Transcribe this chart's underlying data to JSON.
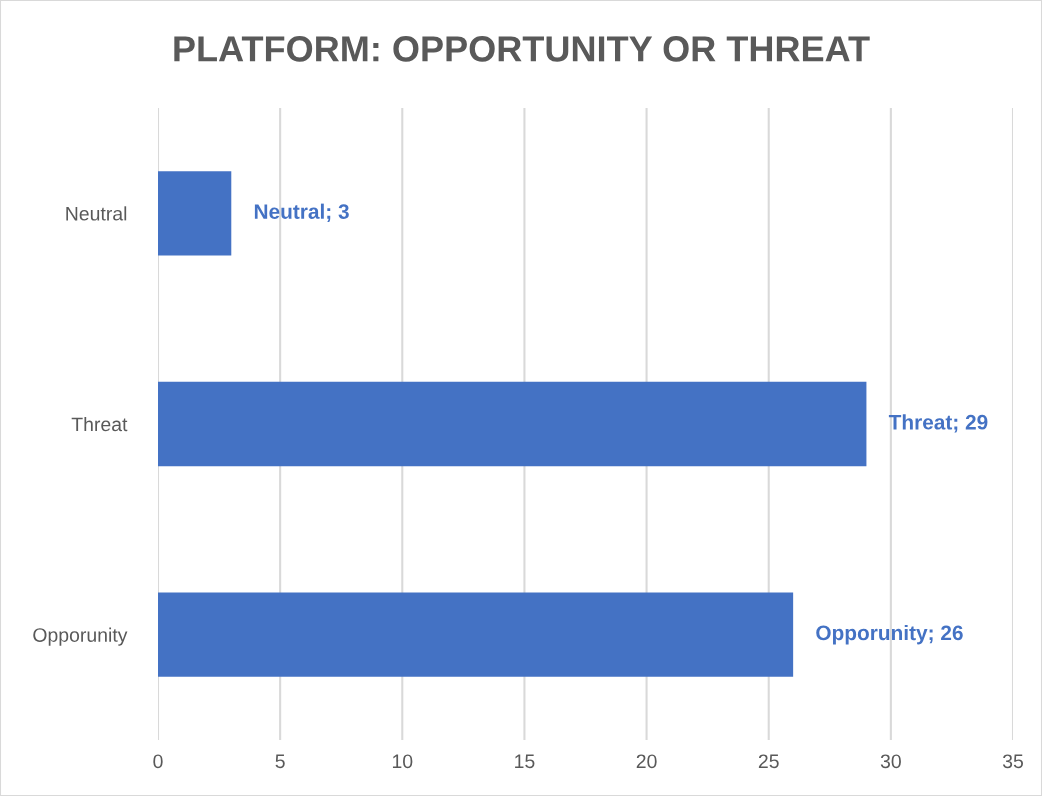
{
  "chart_data": {
    "type": "bar",
    "orientation": "horizontal",
    "title": "PLATFORM: OPPORTUNITY OR THREAT",
    "categories": [
      "Neutral",
      "Threat",
      "Opporunity"
    ],
    "values": [
      3,
      29,
      26
    ],
    "color": "#4472c4",
    "value_labels": [
      "Neutral; 3",
      "Threat; 29",
      "Opporunity; 26"
    ],
    "xlim": [
      0,
      35
    ],
    "xticks": [
      0,
      5,
      10,
      15,
      20,
      25,
      30,
      35
    ],
    "grid": "x",
    "legend": false
  }
}
